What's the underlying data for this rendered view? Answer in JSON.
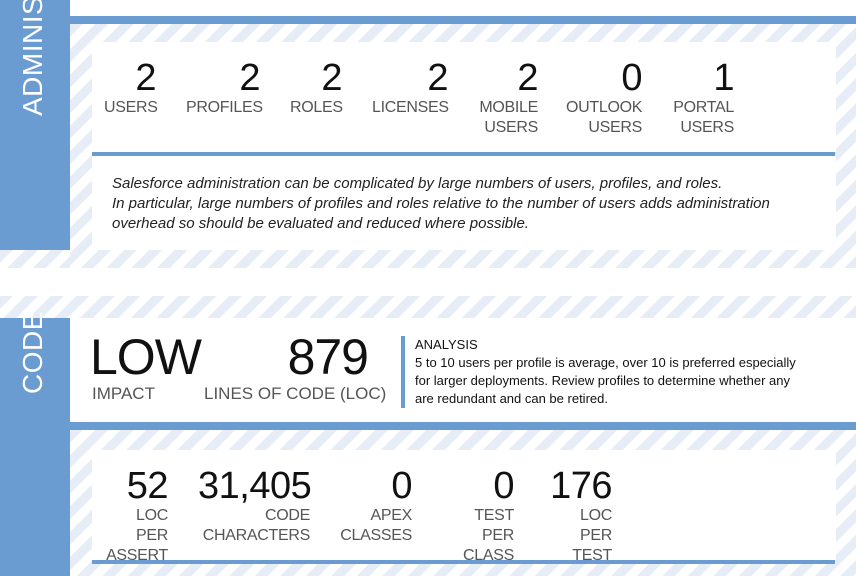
{
  "administration": {
    "tab_label": "ADMINISTRATION",
    "stats": [
      {
        "value": "2",
        "label": "USERS"
      },
      {
        "value": "2",
        "label": "PROFILES"
      },
      {
        "value": "2",
        "label": "ROLES"
      },
      {
        "value": "2",
        "label": "LICENSES"
      },
      {
        "value": "2",
        "label_line1": "MOBILE",
        "label_line2": "USERS"
      },
      {
        "value": "0",
        "label_line1": "OUTLOOK",
        "label_line2": "USERS"
      },
      {
        "value": "1",
        "label_line1": "PORTAL",
        "label_line2": "USERS"
      }
    ],
    "note_lines": [
      "Salesforce administration can be complicated by large numbers of users, profiles, and roles.",
      "In particular, large numbers of profiles and roles relative to the number of users adds administration",
      "overhead so should be evaluated and reduced where possible."
    ]
  },
  "code": {
    "tab_label": "CODE",
    "impact_value": "LOW",
    "impact_label": "IMPACT",
    "loc_value": "879",
    "loc_label": "LINES OF CODE (LOC)",
    "analysis_title": "ANALYSIS",
    "analysis_lines": [
      "5 to 10 users per profile is average, over 10 is preferred especially",
      "for larger deployments.  Review profiles to determine whether any",
      "are redundant and can be retired."
    ],
    "stats": [
      {
        "value": "52",
        "label_line1": "LOC PER",
        "label_line2": "ASSERT"
      },
      {
        "value": "31,405",
        "label_line1": "CODE",
        "label_line2": "CHARACTERS"
      },
      {
        "value": "0",
        "label_line1": "APEX",
        "label_line2": "CLASSES"
      },
      {
        "value": "0",
        "label_line1": "TEST PER",
        "label_line2": "CLASS"
      },
      {
        "value": "176",
        "label_line1": "LOC PER",
        "label_line2": "TEST"
      }
    ]
  }
}
